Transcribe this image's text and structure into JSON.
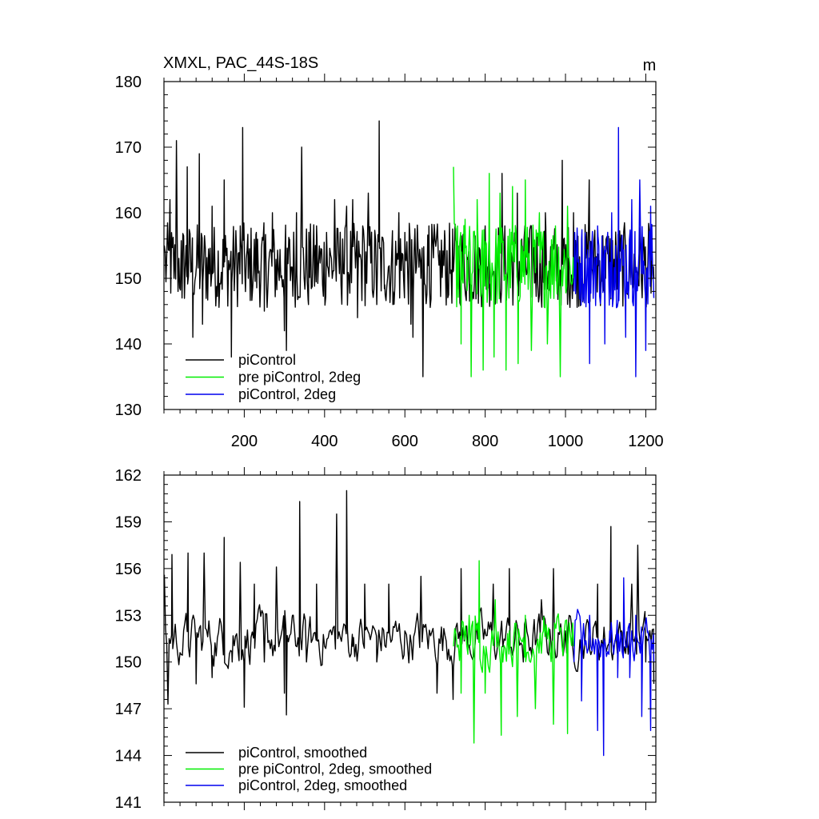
{
  "chart_data": [
    {
      "type": "line",
      "title": "XMXL, PAC_44S-18S",
      "units": "m",
      "xlim": [
        0,
        1225
      ],
      "ylim": [
        130,
        180
      ],
      "xticks": [
        200,
        400,
        600,
        800,
        1000,
        1200
      ],
      "yticks": [
        130,
        140,
        150,
        160,
        170,
        180
      ],
      "grid": false,
      "legend_position": "bottom-left",
      "series": [
        {
          "name": "piControl",
          "color": "#000000",
          "x_range": [
            1,
            1220
          ],
          "anchors": [
            [
              1,
              155
            ],
            [
              15,
              162
            ],
            [
              25,
              150
            ],
            [
              31,
              171
            ],
            [
              45,
              147
            ],
            [
              58,
              167
            ],
            [
              72,
              141
            ],
            [
              88,
              169
            ],
            [
              96,
              143
            ],
            [
              120,
              161
            ],
            [
              150,
              165
            ],
            [
              168,
              138
            ],
            [
              190,
              158
            ],
            [
              196,
              173
            ],
            [
              210,
              150
            ],
            [
              230,
              157
            ],
            [
              250,
              145
            ],
            [
              270,
              160
            ],
            [
              290,
              152
            ],
            [
              300,
              142
            ],
            [
              305,
              139
            ],
            [
              312,
              156
            ],
            [
              330,
              160
            ],
            [
              343,
              170
            ],
            [
              360,
              146
            ],
            [
              380,
              158
            ],
            [
              405,
              157
            ],
            [
              425,
              162
            ],
            [
              445,
              156
            ],
            [
              455,
              161
            ],
            [
              470,
              162
            ],
            [
              482,
              144
            ],
            [
              495,
              158
            ],
            [
              509,
              163
            ],
            [
              530,
              146
            ],
            [
              536,
              174
            ],
            [
              550,
              149
            ],
            [
              570,
              146
            ],
            [
              585,
              160
            ],
            [
              600,
              157
            ],
            [
              615,
              143
            ],
            [
              620,
              141
            ],
            [
              640,
              150
            ],
            [
              645,
              135
            ],
            [
              660,
              158
            ],
            [
              685,
              152
            ],
            [
              700,
              156
            ],
            [
              720,
              151
            ],
            [
              740,
              155
            ],
            [
              800,
              158
            ],
            [
              842,
              166
            ],
            [
              880,
              163
            ],
            [
              950,
              160
            ],
            [
              992,
              168
            ],
            [
              1020,
              160
            ],
            [
              1030,
              155
            ],
            [
              1059,
              165
            ],
            [
              1100,
              150
            ],
            [
              1160,
              152
            ],
            [
              1220,
              150
            ]
          ]
        },
        {
          "name": "pre piControl, 2deg",
          "color": "#00ee00",
          "x_range": [
            721,
            1020
          ],
          "anchors": [
            [
              721,
              167
            ],
            [
              740,
              140
            ],
            [
              750,
              159
            ],
            [
              765,
              135
            ],
            [
              780,
              162
            ],
            [
              795,
              136
            ],
            [
              810,
              166
            ],
            [
              822,
              138
            ],
            [
              837,
              163
            ],
            [
              852,
              136
            ],
            [
              868,
              164
            ],
            [
              882,
              137
            ],
            [
              900,
              165
            ],
            [
              915,
              139
            ],
            [
              935,
              160
            ],
            [
              955,
              140
            ],
            [
              975,
              158
            ],
            [
              987,
              135
            ],
            [
              1005,
              161
            ],
            [
              1020,
              150
            ]
          ]
        },
        {
          "name": "piControl, 2deg",
          "color": "#0000ee",
          "x_range": [
            1021,
            1220
          ],
          "anchors": [
            [
              1021,
              148
            ],
            [
              1040,
              156
            ],
            [
              1060,
              137
            ],
            [
              1080,
              158
            ],
            [
              1098,
              140
            ],
            [
              1115,
              160
            ],
            [
              1132,
              173
            ],
            [
              1150,
              141
            ],
            [
              1165,
              162
            ],
            [
              1175,
              135
            ],
            [
              1185,
              165
            ],
            [
              1200,
              139
            ],
            [
              1212,
              161
            ],
            [
              1220,
              147
            ]
          ]
        }
      ]
    },
    {
      "type": "line",
      "title": "",
      "xlim": [
        0,
        1225
      ],
      "ylim": [
        141,
        162
      ],
      "xticks": [
        200,
        400,
        600,
        800,
        1000,
        1200
      ],
      "yticks": [
        141,
        144,
        147,
        150,
        153,
        156,
        159,
        162
      ],
      "grid": false,
      "legend_position": "bottom-left",
      "series": [
        {
          "name": "piControl, smoothed",
          "color": "#000000",
          "x_range": [
            1,
            1220
          ],
          "anchors": [
            [
              1,
              155.6
            ],
            [
              10,
              147.3
            ],
            [
              20,
              156.9
            ],
            [
              40,
              150.6
            ],
            [
              60,
              157
            ],
            [
              80,
              148.6
            ],
            [
              100,
              157
            ],
            [
              120,
              149
            ],
            [
              150,
              158
            ],
            [
              170,
              150
            ],
            [
              190,
              156.4
            ],
            [
              200,
              147.1
            ],
            [
              225,
              155
            ],
            [
              250,
              150
            ],
            [
              280,
              156.1
            ],
            [
              300,
              148
            ],
            [
              305,
              146.6
            ],
            [
              320,
              153
            ],
            [
              338,
              160.3
            ],
            [
              355,
              150
            ],
            [
              380,
              155
            ],
            [
              400,
              151
            ],
            [
              430,
              159.5
            ],
            [
              445,
              152
            ],
            [
              455,
              161
            ],
            [
              470,
              151
            ],
            [
              500,
              155
            ],
            [
              530,
              150
            ],
            [
              560,
              155
            ],
            [
              600,
              152
            ],
            [
              640,
              155.5
            ],
            [
              680,
              148
            ],
            [
              720,
              147.6
            ],
            [
              740,
              156
            ],
            [
              780,
              152
            ],
            [
              820,
              155
            ],
            [
              860,
              156
            ],
            [
              895,
              150
            ],
            [
              940,
              154
            ],
            [
              970,
              156
            ],
            [
              1000,
              152
            ],
            [
              1040,
              151
            ],
            [
              1080,
              155
            ],
            [
              1113,
              158.7
            ],
            [
              1140,
              152
            ],
            [
              1165,
              155
            ],
            [
              1180,
              157.5
            ],
            [
              1200,
              150
            ],
            [
              1220,
              148.6
            ]
          ]
        },
        {
          "name": "pre piControl, 2deg, smoothed",
          "color": "#00ee00",
          "x_range": [
            721,
            1020
          ],
          "anchors": [
            [
              721,
              151
            ],
            [
              740,
              148
            ],
            [
              760,
              153
            ],
            [
              772,
              144.8
            ],
            [
              785,
              156.5
            ],
            [
              800,
              148
            ],
            [
              825,
              154
            ],
            [
              840,
              145.3
            ],
            [
              860,
              152
            ],
            [
              880,
              146.5
            ],
            [
              900,
              153
            ],
            [
              925,
              147
            ],
            [
              945,
              152
            ],
            [
              970,
              146
            ],
            [
              985,
              152
            ],
            [
              1005,
              145.4
            ],
            [
              1020,
              151
            ]
          ]
        },
        {
          "name": "piControl, 2deg, smoothed",
          "color": "#0000ee",
          "x_range": [
            1021,
            1220
          ],
          "anchors": [
            [
              1021,
              150
            ],
            [
              1040,
              147.5
            ],
            [
              1060,
              153
            ],
            [
              1080,
              145.6
            ],
            [
              1095,
              144
            ],
            [
              1110,
              152
            ],
            [
              1130,
              149
            ],
            [
              1145,
              155.4
            ],
            [
              1160,
              149
            ],
            [
              1175,
              153
            ],
            [
              1190,
              146.5
            ],
            [
              1205,
              152
            ],
            [
              1212,
              145.6
            ],
            [
              1220,
              150
            ]
          ]
        }
      ]
    }
  ]
}
